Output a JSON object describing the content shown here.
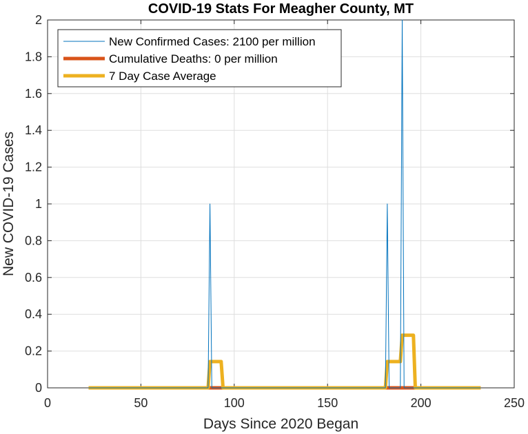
{
  "chart_data": {
    "type": "line",
    "title": "COVID-19 Stats For Meagher County, MT",
    "xlabel": "Days Since 2020 Began",
    "ylabel": "New COVID-19 Cases",
    "xlim": [
      0,
      250
    ],
    "ylim": [
      0,
      2
    ],
    "xticks": [
      0,
      50,
      100,
      150,
      200,
      250
    ],
    "xtick_labels": [
      "0",
      "50",
      "100",
      "150",
      "200",
      "250"
    ],
    "yticks": [
      0,
      0.2,
      0.4,
      0.6,
      0.8,
      1,
      1.2,
      1.4,
      1.6,
      1.8,
      2
    ],
    "ytick_labels": [
      "0",
      "0.2",
      "0.4",
      "0.6",
      "0.8",
      "1",
      "1.2",
      "1.4",
      "1.6",
      "1.8",
      "2"
    ],
    "grid": true,
    "legend_position": "top-left",
    "series": [
      {
        "name": "New Confirmed Cases: 2100 per million",
        "color": "#0072BD",
        "style": "thin",
        "x": [
          22,
          86,
          87,
          88,
          181,
          182,
          183,
          189,
          190,
          191,
          232
        ],
        "y": [
          0,
          0,
          1,
          0,
          0,
          1,
          0,
          0,
          2,
          0,
          0
        ]
      },
      {
        "name": "Cumulative Deaths: 0 per million",
        "color": "#D95319",
        "style": "thick",
        "x": [
          22,
          232
        ],
        "y": [
          0,
          0
        ]
      },
      {
        "name": "7 Day Case Average",
        "color": "#EDB120",
        "style": "thick",
        "x": [
          22,
          86,
          87,
          93,
          94,
          181,
          182,
          188,
          189,
          190,
          196,
          197,
          232
        ],
        "y": [
          0,
          0,
          0.143,
          0.143,
          0,
          0,
          0.143,
          0.143,
          0.143,
          0.286,
          0.286,
          0,
          0
        ]
      }
    ]
  }
}
